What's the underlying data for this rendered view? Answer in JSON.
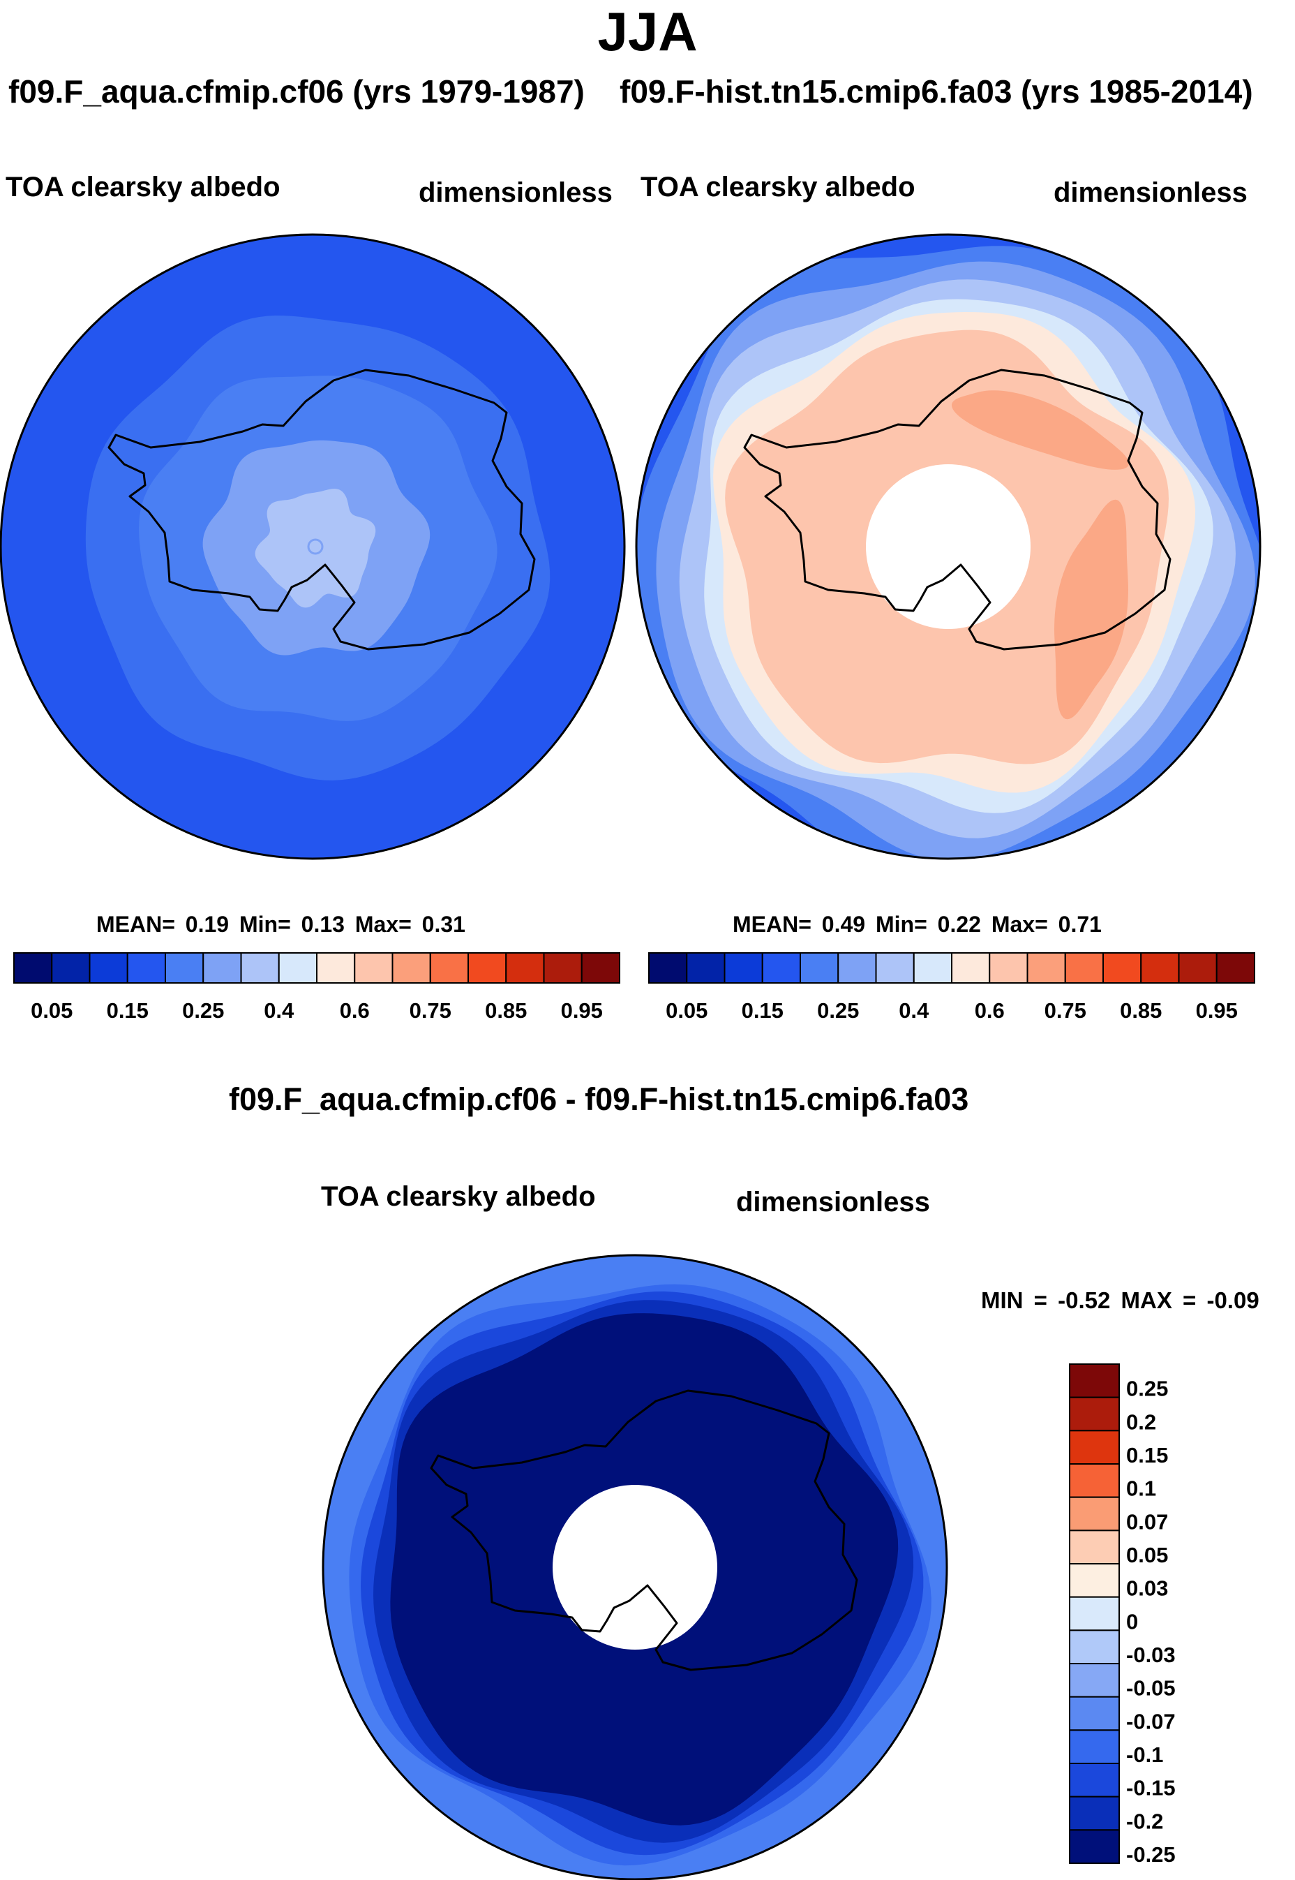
{
  "title": "JJA",
  "panels": [
    {
      "case": "f09.F_aqua.cfmip.cf06 (yrs 1979-1987)",
      "variable": "TOA clearsky albedo",
      "units": "dimensionless",
      "stats": {
        "mean_label": "MEAN=",
        "mean": "0.19",
        "min_label": "Min=",
        "min": "0.13",
        "max_label": "Max=",
        "max": "0.31"
      }
    },
    {
      "case": "f09.F-hist.tn15.cmip6.fa03 (yrs 1985-2014)",
      "variable": "TOA clearsky albedo",
      "units": "dimensionless",
      "stats": {
        "mean_label": "MEAN=",
        "mean": "0.49",
        "min_label": "Min=",
        "min": "0.22",
        "max_label": "Max=",
        "max": "0.71"
      }
    },
    {
      "case": "f09.F_aqua.cfmip.cf06 - f09.F-hist.tn15.cmip6.fa03",
      "variable": "TOA clearsky albedo",
      "units": "dimensionless",
      "stats": {
        "min_label": "MIN =",
        "min": "-0.52",
        "max_label": "MAX =",
        "max": "-0.09"
      }
    }
  ],
  "abs_colorbar": {
    "colors": [
      "#000b6f",
      "#0223a8",
      "#0c3bd8",
      "#2456ef",
      "#4a7ff3",
      "#7ea2f5",
      "#adc4f8",
      "#d7e8fb",
      "#fde9dc",
      "#fdc5ad",
      "#fb9f7b",
      "#f97146",
      "#f14a1f",
      "#d42e0e",
      "#ac1c0c",
      "#7d0808"
    ],
    "ticks": [
      "0.05",
      "0.15",
      "0.25",
      "0.4",
      "0.6",
      "0.75",
      "0.85",
      "0.95"
    ]
  },
  "diff_colorbar": {
    "colors": [
      "#7d0808",
      "#ac1c0c",
      "#de350e",
      "#f66236",
      "#fa9c74",
      "#fdcdb4",
      "#fdefe1",
      "#d9e9fb",
      "#b0c9f9",
      "#86a8f5",
      "#5b89f2",
      "#3569ee",
      "#1b48dc",
      "#0a2fb9",
      "#00107a"
    ],
    "ticks": [
      "0.25",
      "0.2",
      "0.15",
      "0.1",
      "0.07",
      "0.05",
      "0.03",
      "0",
      "-0.03",
      "-0.05",
      "-0.07",
      "-0.1",
      "-0.15",
      "-0.2",
      "-0.25"
    ]
  },
  "map_colors": {
    "p1_background": "#2456ef",
    "p1_rings": [
      "#3a6ff1",
      "#4a7ff3",
      "#7ea2f5",
      "#adc4f8"
    ],
    "p2_rings": [
      "#2456ef",
      "#4a7ff3",
      "#7ea2f5",
      "#adc4f8",
      "#d7e8fb",
      "#fde9dc",
      "#fdc5ad"
    ],
    "p2_patches": "#fba886",
    "p3_rings": [
      "#4a7ff3",
      "#3569ee",
      "#1b48dc",
      "#0a2fb9",
      "#00107a"
    ],
    "pole_hole": "#ffffff"
  }
}
